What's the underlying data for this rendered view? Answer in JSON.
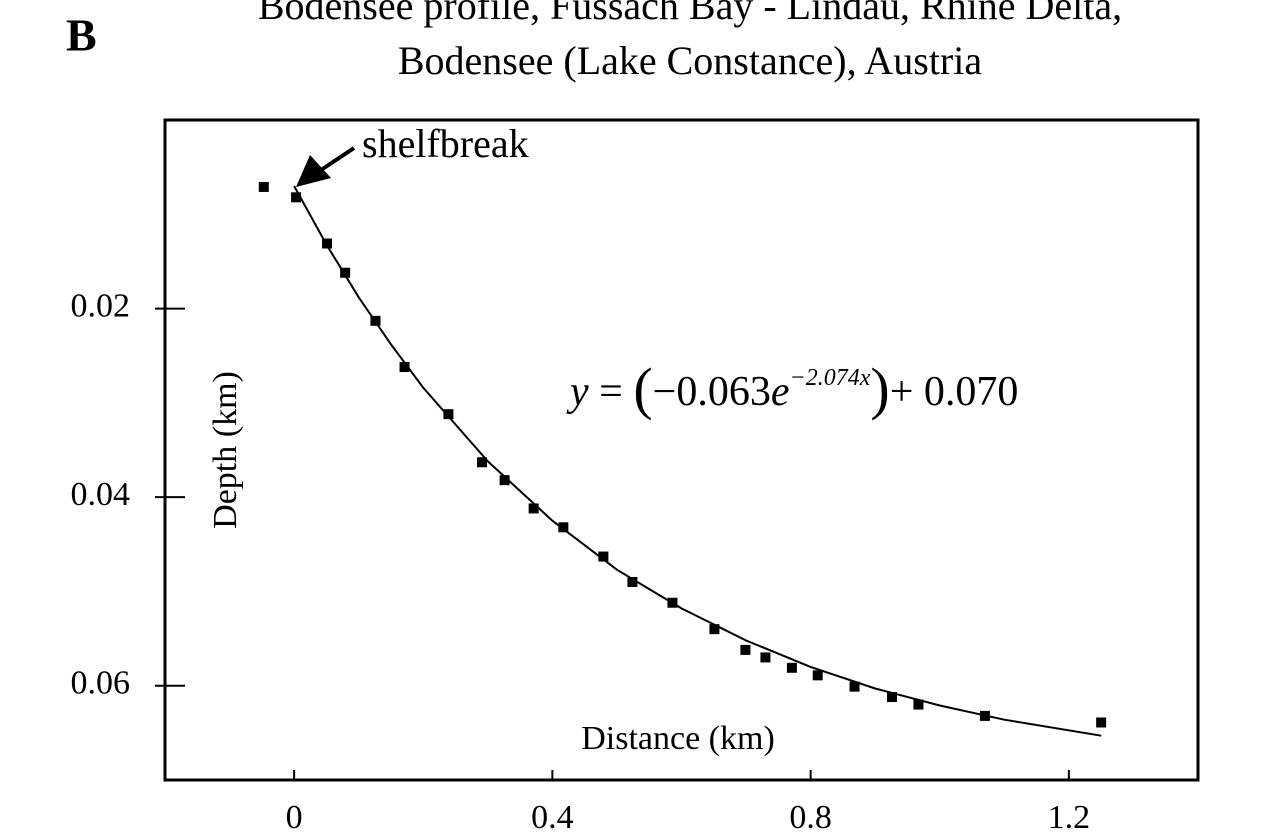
{
  "chart_data": {
    "type": "scatter",
    "panel_label": "B",
    "title": [
      "Bodensee profile, Fussach Bay - Lindau, Rhine Delta,",
      "Bodensee (Lake Constance), Austria"
    ],
    "x_label": "Distance (km)",
    "y_label": "Depth (km)",
    "annotation": "shelfbreak",
    "equation": [
      "y",
      " = ",
      "(",
      "−0.063",
      "e",
      "−2.074x",
      ")",
      "+ 0.070"
    ],
    "xlim": [
      -0.2,
      1.4
    ],
    "xticks": [
      0,
      0.4,
      0.8,
      1.2
    ],
    "ylim": [
      0,
      0.07
    ],
    "yticks": [
      0.02,
      0.04,
      0.06
    ],
    "y_inverted": true,
    "series": [
      {
        "color": "#000000",
        "style": "markers",
        "x": [
          -0.047,
          0.003,
          0.051,
          0.079,
          0.126,
          0.171,
          0.239,
          0.291,
          0.326,
          0.371,
          0.417,
          0.479,
          0.524,
          0.586,
          0.651,
          0.699,
          0.73,
          0.771,
          0.811,
          0.868,
          0.926,
          0.967,
          1.07,
          1.25
        ],
        "values": [
          0.0071,
          0.0082,
          0.0131,
          0.0162,
          0.0213,
          0.0262,
          0.0312,
          0.0363,
          0.0382,
          0.0412,
          0.0432,
          0.0463,
          0.049,
          0.0512,
          0.054,
          0.0562,
          0.057,
          0.0581,
          0.0589,
          0.0601,
          0.0612,
          0.062,
          0.0632,
          0.0639
        ]
      },
      {
        "color": "#000000",
        "style": "line",
        "x": [
          0,
          0.05,
          0.1,
          0.15,
          0.2,
          0.3,
          0.4,
          0.5,
          0.6,
          0.7,
          0.8,
          0.9,
          1.0,
          1.1,
          1.25
        ],
        "values": [
          0.007,
          0.0132,
          0.0188,
          0.0238,
          0.0284,
          0.0362,
          0.0425,
          0.0477,
          0.0518,
          0.0552,
          0.058,
          0.0603,
          0.0621,
          0.0636,
          0.0653
        ]
      }
    ]
  }
}
